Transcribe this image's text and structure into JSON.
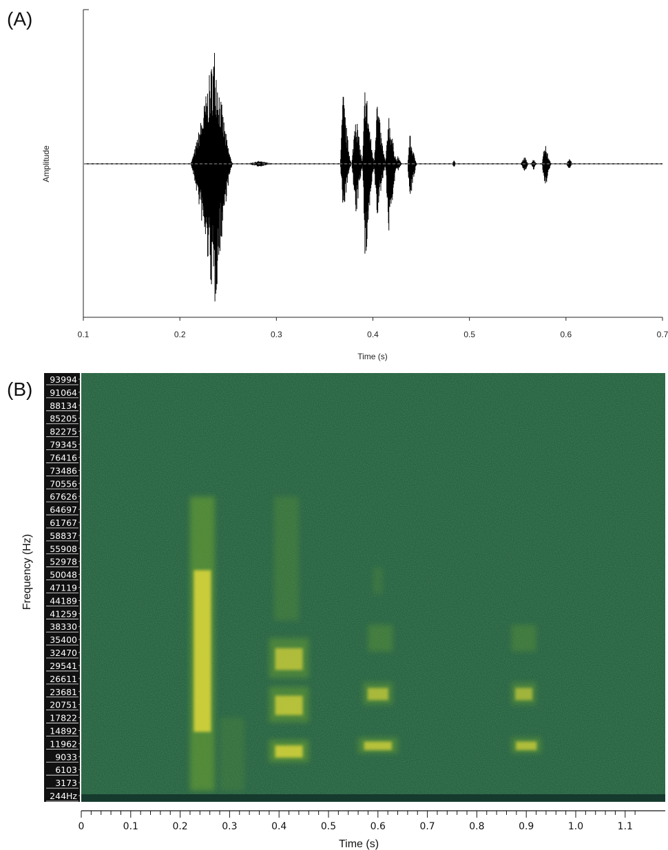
{
  "panel_a_label": "(A)",
  "panel_b_label": "(B)",
  "chart_data": [
    {
      "type": "line",
      "panel": "(A)",
      "title": "",
      "xlabel": "Time (s)",
      "ylabel": "Amplitude",
      "xlim": [
        0.1,
        0.7
      ],
      "x_ticks": [
        "0.1",
        "0.2",
        "0.3",
        "0.4",
        "0.5",
        "0.6",
        "0.7"
      ],
      "color": "#000000",
      "events": [
        {
          "start": 0.211,
          "end": 0.255,
          "peak_time": 0.236,
          "amp_up": 0.78,
          "amp_down": 0.98
        },
        {
          "start": 0.268,
          "end": 0.3,
          "peak_time": 0.282,
          "amp_up": 0.02,
          "amp_down": 0.02
        },
        {
          "start": 0.366,
          "end": 0.378,
          "peak_time": 0.369,
          "amp_up": 0.5,
          "amp_down": 0.36
        },
        {
          "start": 0.378,
          "end": 0.39,
          "peak_time": 0.382,
          "amp_up": 0.4,
          "amp_down": 0.42
        },
        {
          "start": 0.389,
          "end": 0.402,
          "peak_time": 0.392,
          "amp_up": 0.6,
          "amp_down": 0.74
        },
        {
          "start": 0.401,
          "end": 0.414,
          "peak_time": 0.404,
          "amp_up": 0.47,
          "amp_down": 0.4
        },
        {
          "start": 0.413,
          "end": 0.426,
          "peak_time": 0.416,
          "amp_up": 0.37,
          "amp_down": 0.52
        },
        {
          "start": 0.424,
          "end": 0.43,
          "peak_time": 0.426,
          "amp_up": 0.06,
          "amp_down": 0.06
        },
        {
          "start": 0.436,
          "end": 0.446,
          "peak_time": 0.438,
          "amp_up": 0.21,
          "amp_down": 0.3
        },
        {
          "start": 0.482,
          "end": 0.486,
          "peak_time": 0.484,
          "amp_up": 0.03,
          "amp_down": 0.03
        },
        {
          "start": 0.553,
          "end": 0.562,
          "peak_time": 0.557,
          "amp_up": 0.05,
          "amp_down": 0.06
        },
        {
          "start": 0.564,
          "end": 0.57,
          "peak_time": 0.566,
          "amp_up": 0.04,
          "amp_down": 0.05
        },
        {
          "start": 0.575,
          "end": 0.585,
          "peak_time": 0.578,
          "amp_up": 0.15,
          "amp_down": 0.2
        },
        {
          "start": 0.6,
          "end": 0.608,
          "peak_time": 0.603,
          "amp_up": 0.04,
          "amp_down": 0.04
        }
      ]
    },
    {
      "type": "heatmap",
      "panel": "(B)",
      "title": "",
      "xlabel": "Time (s)",
      "ylabel": "Frequency (Hz)",
      "xlim": [
        0,
        1.18
      ],
      "x_ticks": [
        "0",
        "0.1",
        "0.2",
        "0.3",
        "0.4",
        "0.5",
        "0.6",
        "0.7",
        "0.8",
        "0.9",
        "1.0",
        "1.1"
      ],
      "freq_labels": [
        "93994",
        "91064",
        "88134",
        "85205",
        "82275",
        "79345",
        "76416",
        "73486",
        "70556",
        "67626",
        "64697",
        "61767",
        "58837",
        "55908",
        "52978",
        "50048",
        "47119",
        "44189",
        "41259",
        "38330",
        "35400",
        "32470",
        "29541",
        "26611",
        "23681",
        "20751",
        "17822",
        "14892",
        "11962",
        "9033",
        "6103",
        "3173",
        "244Hz"
      ],
      "freq_range_hz": [
        244,
        95000
      ],
      "colormap": {
        "background": "#1f5c36",
        "low": "#17402a",
        "mid": "#6fa62f",
        "high": "#f2e33a"
      },
      "bright_regions": [
        {
          "t0": 0.22,
          "t1": 0.27,
          "f0": 1500,
          "f1": 68000,
          "intensity": 1.0
        },
        {
          "t0": 0.28,
          "t1": 0.33,
          "f0": 1500,
          "f1": 18000,
          "intensity": 0.35
        },
        {
          "t0": 0.38,
          "t1": 0.46,
          "f0": 8000,
          "f1": 13000,
          "intensity": 0.95
        },
        {
          "t0": 0.38,
          "t1": 0.46,
          "f0": 17000,
          "f1": 25000,
          "intensity": 0.85
        },
        {
          "t0": 0.38,
          "t1": 0.46,
          "f0": 27000,
          "f1": 36000,
          "intensity": 0.8
        },
        {
          "t0": 0.39,
          "t1": 0.44,
          "f0": 40000,
          "f1": 68000,
          "intensity": 0.45
        },
        {
          "t0": 0.56,
          "t1": 0.64,
          "f0": 10000,
          "f1": 13500,
          "intensity": 0.85
        },
        {
          "t0": 0.57,
          "t1": 0.63,
          "f0": 21000,
          "f1": 26000,
          "intensity": 0.75
        },
        {
          "t0": 0.58,
          "t1": 0.63,
          "f0": 33000,
          "f1": 39000,
          "intensity": 0.6
        },
        {
          "t0": 0.59,
          "t1": 0.61,
          "f0": 46000,
          "f1": 52000,
          "intensity": 0.35
        },
        {
          "t0": 0.87,
          "t1": 0.93,
          "f0": 10000,
          "f1": 13500,
          "intensity": 0.8
        },
        {
          "t0": 0.87,
          "t1": 0.92,
          "f0": 21000,
          "f1": 26000,
          "intensity": 0.7
        },
        {
          "t0": 0.87,
          "t1": 0.92,
          "f0": 33000,
          "f1": 39000,
          "intensity": 0.55
        }
      ]
    }
  ]
}
